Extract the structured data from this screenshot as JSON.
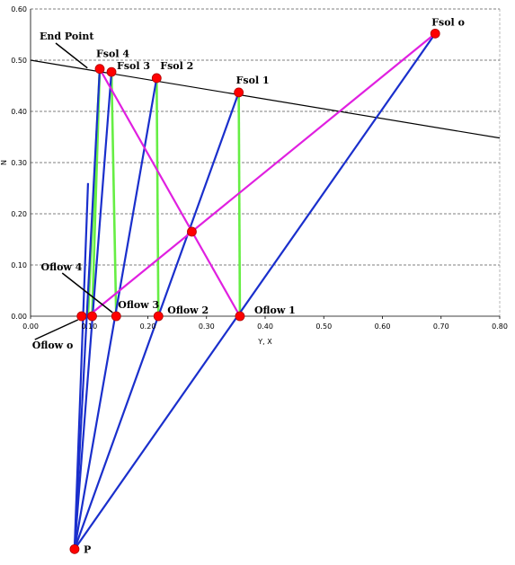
{
  "chart_data": {
    "type": "scatter",
    "title": "",
    "xlabel": "Y, X",
    "ylabel": "N",
    "xlim": [
      0,
      0.8
    ],
    "ylim": [
      -0.45,
      0.6
    ],
    "x_ticks": [
      "0.00",
      "0.10",
      "0.20",
      "0.30",
      "0.40",
      "0.50",
      "0.60",
      "0.70",
      "0.80"
    ],
    "y_ticks": [
      "0.00",
      "0.10",
      "0.20",
      "0.30",
      "0.40",
      "0.50",
      "0.60"
    ],
    "grid": "horizontal dashed",
    "equilibrium_curve": [
      [
        0,
        0.5
      ],
      [
        0.8,
        0.348
      ]
    ],
    "points": [
      {
        "id": "fsol0",
        "label": "Fsol o",
        "x": 0.69,
        "y": 0.552
      },
      {
        "id": "fsol1",
        "label": "Fsol 1",
        "x": 0.355,
        "y": 0.437
      },
      {
        "id": "fsol2",
        "label": "Fsol 2",
        "x": 0.215,
        "y": 0.465
      },
      {
        "id": "fsol3",
        "label": "Fsol 3",
        "x": 0.138,
        "y": 0.477
      },
      {
        "id": "fsol4",
        "label": "Fsol 4",
        "x": 0.118,
        "y": 0.483
      },
      {
        "id": "oflow0",
        "label": "Oflow o",
        "x": 0.087,
        "y": 0.0
      },
      {
        "id": "oflow1",
        "label": "Oflow 1",
        "x": 0.357,
        "y": 0.0
      },
      {
        "id": "oflow2",
        "label": "Oflow 2",
        "x": 0.218,
        "y": 0.0
      },
      {
        "id": "oflow3",
        "label": "Oflow 3",
        "x": 0.146,
        "y": 0.0
      },
      {
        "id": "oflow4",
        "label": "Oflow 4",
        "x": 0.105,
        "y": 0.0
      },
      {
        "id": "p",
        "label": "P",
        "x": 0.075,
        "y": -0.455
      },
      {
        "id": "delta",
        "label": "",
        "x": 0.275,
        "y": 0.165
      }
    ],
    "tie_lines": [
      {
        "from": "fsol1",
        "to": "oflow1"
      },
      {
        "from": "fsol2",
        "to": "oflow2"
      },
      {
        "from": "fsol3",
        "to": "oflow3"
      },
      {
        "from": "fsol4",
        "to": "oflow4"
      },
      {
        "from": "fsol4",
        "to_xy": [
          0.098,
          0.0
        ]
      }
    ],
    "operating_lines": [
      {
        "from": "p",
        "to": "fsol0"
      },
      {
        "from": "p",
        "to": "fsol1"
      },
      {
        "from": "p",
        "to": "fsol2"
      },
      {
        "from": "p",
        "to": "fsol3"
      },
      {
        "from": "p",
        "to": "fsol4"
      },
      {
        "from": "p",
        "to_xy": [
          0.098,
          0.26
        ]
      }
    ],
    "mixing_lines": [
      {
        "from": "fsol0",
        "to_xy": [
          0.098,
          0.0
        ]
      },
      {
        "from": "fsol4",
        "to": "oflow1"
      }
    ],
    "annotations": [
      {
        "text": "End Point",
        "arrow_to": [
          0.1,
          0.483
        ]
      }
    ],
    "colors": {
      "equilibrium": "#000000",
      "tie_line": "#66ee44",
      "operating_line": "#1a2fcc",
      "mixing_line": "#e020e0",
      "point_fill": "#ff0000",
      "grid": "#555555"
    }
  }
}
